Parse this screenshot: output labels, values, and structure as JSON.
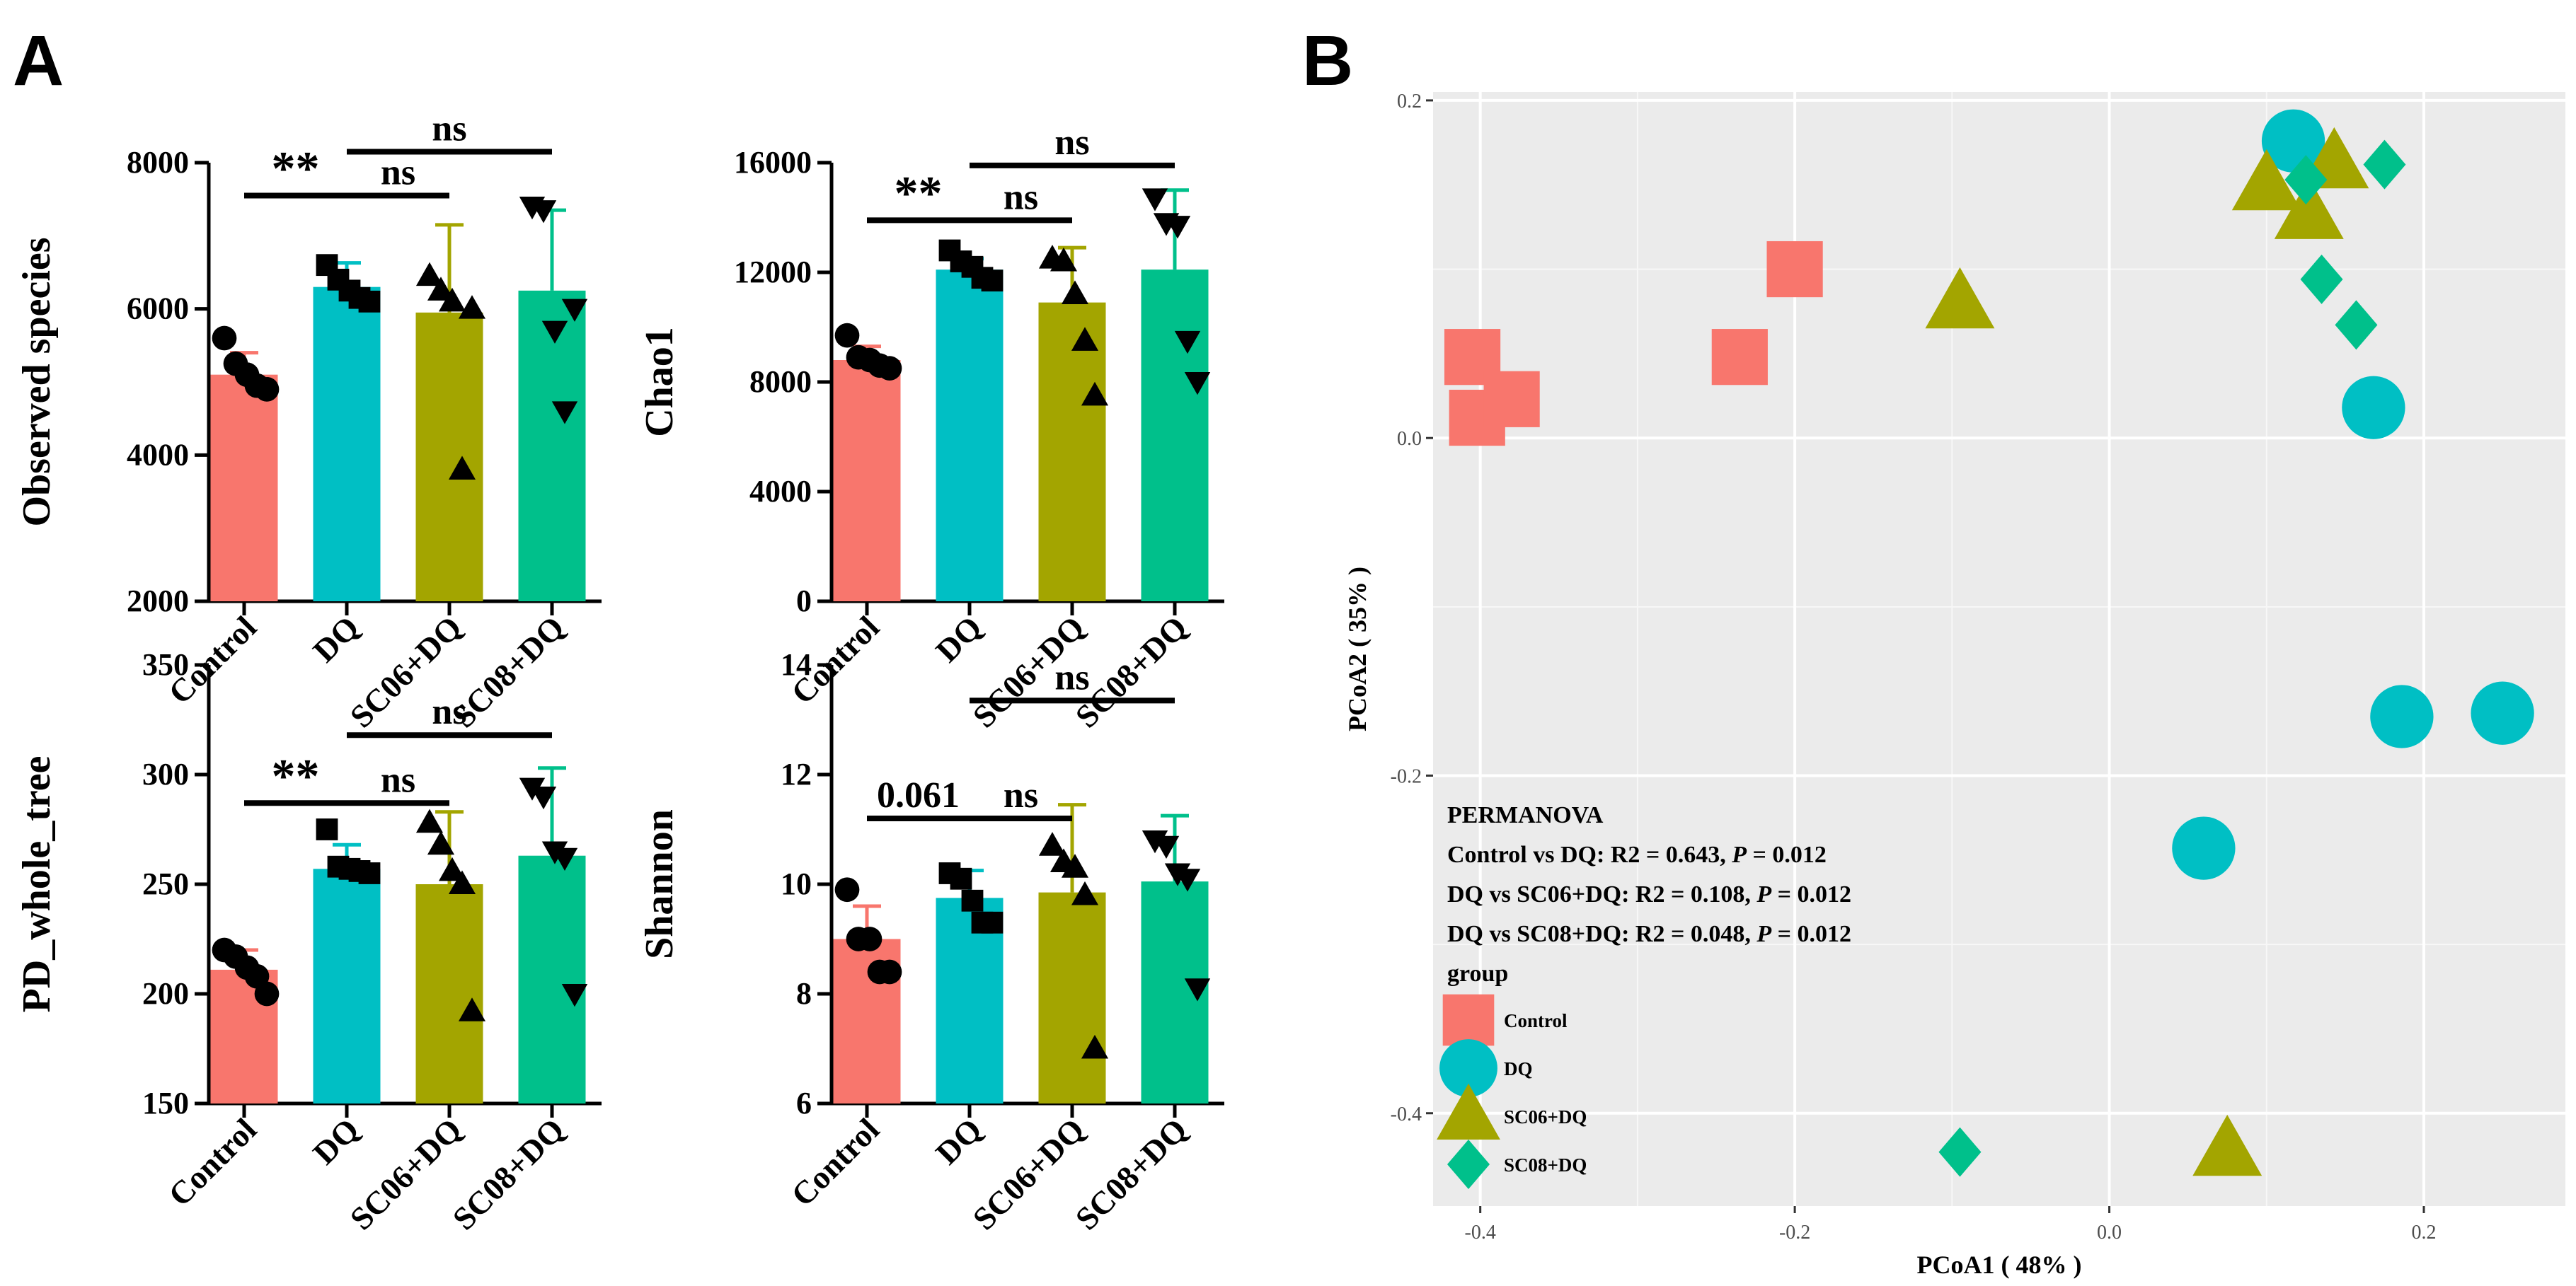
{
  "panels": {
    "a": "A",
    "b": "B"
  },
  "bar_groups": [
    "Control",
    "DQ",
    "SC06+DQ",
    "SC08+DQ"
  ],
  "colors": {
    "Control": "#F8766D",
    "DQ": "#00BFC4",
    "SC06+DQ": "#A3A500",
    "SC08+DQ": "#00C08B",
    "plot_bg": "#EBEBEB"
  },
  "chart_data": [
    {
      "type": "bar",
      "id": "observed",
      "ylabel": "Observed species",
      "categories": [
        "Control",
        "DQ",
        "SC06+DQ",
        "SC08+DQ"
      ],
      "ylim": [
        2000,
        8000
      ],
      "yticks": [
        2000,
        4000,
        6000,
        8000
      ],
      "values": [
        5100,
        6300,
        5950,
        6250
      ],
      "errors": [
        300,
        330,
        1200,
        1100
      ],
      "points": [
        [
          5600,
          5250,
          5100,
          4950,
          4900
        ],
        [
          6600,
          6400,
          6250,
          6150,
          6100
        ],
        [
          6450,
          6250,
          6100,
          3800,
          6000
        ],
        [
          7400,
          7350,
          5700,
          4600,
          6000
        ]
      ],
      "brackets": [
        {
          "from": "Control",
          "to": "DQ",
          "label": "**",
          "y": 7550
        },
        {
          "from": "DQ",
          "to": "SC06+DQ",
          "label": "ns",
          "y": 7550
        },
        {
          "from": "DQ",
          "to": "SC08+DQ",
          "label": "ns",
          "y": 8150
        }
      ]
    },
    {
      "type": "bar",
      "id": "chao1",
      "ylabel": "Chao1",
      "categories": [
        "Control",
        "DQ",
        "SC06+DQ",
        "SC08+DQ"
      ],
      "ylim": [
        0,
        16000
      ],
      "yticks": [
        0,
        4000,
        8000,
        12000,
        16000
      ],
      "values": [
        8800,
        12100,
        10900,
        12100
      ],
      "errors": [
        500,
        400,
        2000,
        2900
      ],
      "points": [
        [
          9700,
          8900,
          8800,
          8600,
          8500
        ],
        [
          12800,
          12400,
          12200,
          11800,
          11700
        ],
        [
          12500,
          12400,
          11200,
          9500,
          7500
        ],
        [
          14700,
          13800,
          13700,
          9500,
          8000
        ]
      ],
      "brackets": [
        {
          "from": "Control",
          "to": "DQ",
          "label": "**",
          "y": 13900
        },
        {
          "from": "DQ",
          "to": "SC06+DQ",
          "label": "ns",
          "y": 13900
        },
        {
          "from": "DQ",
          "to": "SC08+DQ",
          "label": "ns",
          "y": 15900
        }
      ]
    },
    {
      "type": "bar",
      "id": "pd",
      "ylabel": "PD_whole_tree",
      "categories": [
        "Control",
        "DQ",
        "SC06+DQ",
        "SC08+DQ"
      ],
      "ylim": [
        150,
        350
      ],
      "yticks": [
        150,
        200,
        250,
        300,
        350
      ],
      "values": [
        211,
        257,
        250,
        263
      ],
      "errors": [
        9,
        11,
        33,
        40
      ],
      "points": [
        [
          220,
          217,
          212,
          208,
          200
        ],
        [
          275,
          258,
          257,
          256,
          255
        ],
        [
          278,
          268,
          256,
          250,
          192
        ],
        [
          294,
          290,
          265,
          262,
          200
        ]
      ],
      "brackets": [
        {
          "from": "Control",
          "to": "DQ",
          "label": "**",
          "y": 287
        },
        {
          "from": "DQ",
          "to": "SC06+DQ",
          "label": "ns",
          "y": 287
        },
        {
          "from": "DQ",
          "to": "SC08+DQ",
          "label": "ns",
          "y": 318
        }
      ]
    },
    {
      "type": "bar",
      "id": "shannon",
      "ylabel": "Shannon",
      "categories": [
        "Control",
        "DQ",
        "SC06+DQ",
        "SC08+DQ"
      ],
      "ylim": [
        6,
        14
      ],
      "yticks": [
        6,
        8,
        10,
        12,
        14
      ],
      "values": [
        9.0,
        9.75,
        9.85,
        10.05
      ],
      "errors": [
        0.6,
        0.5,
        1.6,
        1.2
      ],
      "points": [
        [
          9.9,
          9.0,
          9.0,
          8.4,
          8.4
        ],
        [
          10.2,
          10.1,
          9.7,
          9.3,
          9.3
        ],
        [
          10.7,
          10.4,
          10.3,
          9.8,
          7.0
        ],
        [
          10.8,
          10.7,
          10.2,
          10.1,
          8.1
        ]
      ],
      "brackets": [
        {
          "from": "Control",
          "to": "DQ",
          "label": "0.061",
          "y": 11.2
        },
        {
          "from": "DQ",
          "to": "SC06+DQ",
          "label": "ns",
          "y": 11.2
        },
        {
          "from": "DQ",
          "to": "SC08+DQ",
          "label": "ns",
          "y": 13.35
        }
      ]
    },
    {
      "type": "scatter",
      "id": "pcoa",
      "xlabel": "PCoA1 ( 48% )",
      "ylabel": "PCoA2 ( 35% )",
      "xlim": [
        -0.43,
        0.29
      ],
      "ylim": [
        -0.455,
        0.205
      ],
      "xticks": [
        -0.4,
        -0.2,
        0.0,
        0.2
      ],
      "xtick_labels": [
        "-0.4",
        "-0.2",
        "0.0",
        "0.2"
      ],
      "yticks": [
        0.2,
        0.0,
        -0.2,
        -0.4
      ],
      "ytick_labels": [
        "0.2",
        "0.0",
        "-0.2",
        "-0.4"
      ],
      "series": [
        {
          "name": "Control",
          "shape": "square",
          "x": [
            -0.405,
            -0.402,
            -0.38,
            -0.235,
            -0.2
          ],
          "y": [
            0.048,
            0.012,
            0.023,
            0.048,
            0.1
          ]
        },
        {
          "name": "DQ",
          "shape": "circle",
          "x": [
            0.117,
            0.168,
            0.186,
            0.25,
            0.06
          ],
          "y": [
            0.176,
            0.018,
            -0.165,
            -0.163,
            -0.243
          ]
        },
        {
          "name": "SC06+DQ",
          "shape": "triangle",
          "x": [
            -0.095,
            0.1,
            0.127,
            0.143,
            0.075
          ],
          "y": [
            0.08,
            0.15,
            0.133,
            0.163,
            -0.422
          ]
        },
        {
          "name": "SC08+DQ",
          "shape": "diamond",
          "x": [
            0.125,
            0.175,
            0.135,
            0.157,
            -0.095
          ],
          "y": [
            0.153,
            0.162,
            0.094,
            0.067,
            -0.423
          ]
        }
      ],
      "annotation": {
        "title": "PERMANOVA",
        "lines": [
          {
            "pre": "Control vs DQ: R2 = 0.643, ",
            "p": "P",
            "post": " = 0.012"
          },
          {
            "pre": "DQ vs SC06+DQ: R2 = 0.108, ",
            "p": "P",
            "post": " = 0.012"
          },
          {
            "pre": "DQ vs SC08+DQ: R2 = 0.048, ",
            "p": "P",
            "post": " = 0.012"
          }
        ]
      },
      "legend": {
        "title": "group",
        "items": [
          "Control",
          "DQ",
          "SC06+DQ",
          "SC08+DQ"
        ],
        "position": "bottom-left"
      }
    }
  ]
}
